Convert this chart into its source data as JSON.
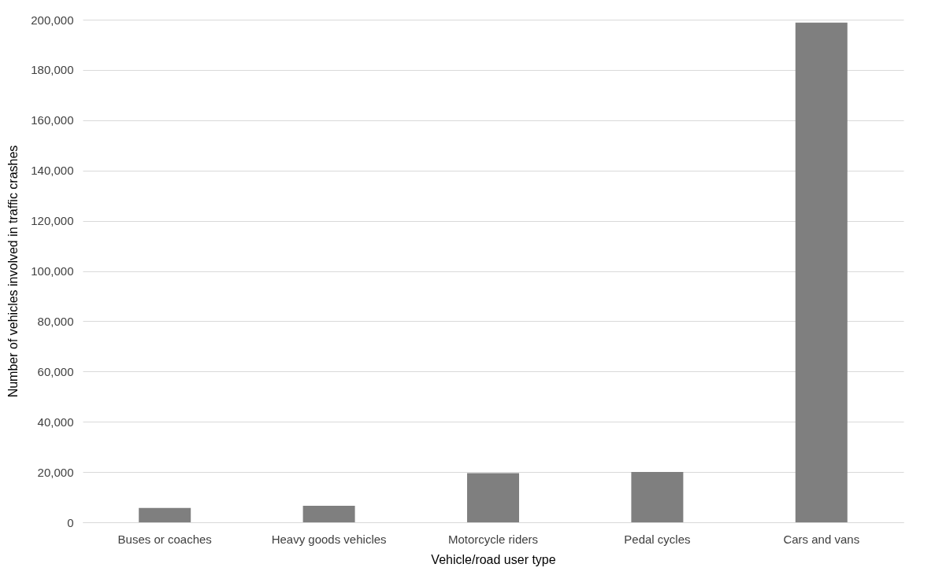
{
  "chart_data": {
    "type": "bar",
    "xlabel": "Vehicle/road user type",
    "ylabel": "Number of vehicles involved in traffic crashes",
    "categories": [
      "Buses or coaches",
      "Heavy goods vehicles",
      "Motorcycle riders",
      "Pedal cycles",
      "Cars and vans"
    ],
    "values": [
      5700,
      6600,
      19600,
      20000,
      198800
    ],
    "color": "#7f7f7f",
    "ylim": [
      0,
      200000
    ],
    "yticks": [
      0,
      {
        "value": 20000,
        "label": "20,000"
      },
      {
        "value": 40000,
        "label": "40,000"
      },
      {
        "value": 60000,
        "label": "60,000"
      },
      {
        "value": 80000,
        "label": "80,000"
      },
      {
        "value": 100000,
        "label": "100,000"
      },
      {
        "value": 120000,
        "label": "120,000"
      },
      {
        "value": 140000,
        "label": "140,000"
      },
      {
        "value": 160000,
        "label": "160,000"
      },
      {
        "value": 180000,
        "label": "180,000"
      },
      {
        "value": 200000,
        "label": "200,000"
      }
    ],
    "grid": "y"
  }
}
